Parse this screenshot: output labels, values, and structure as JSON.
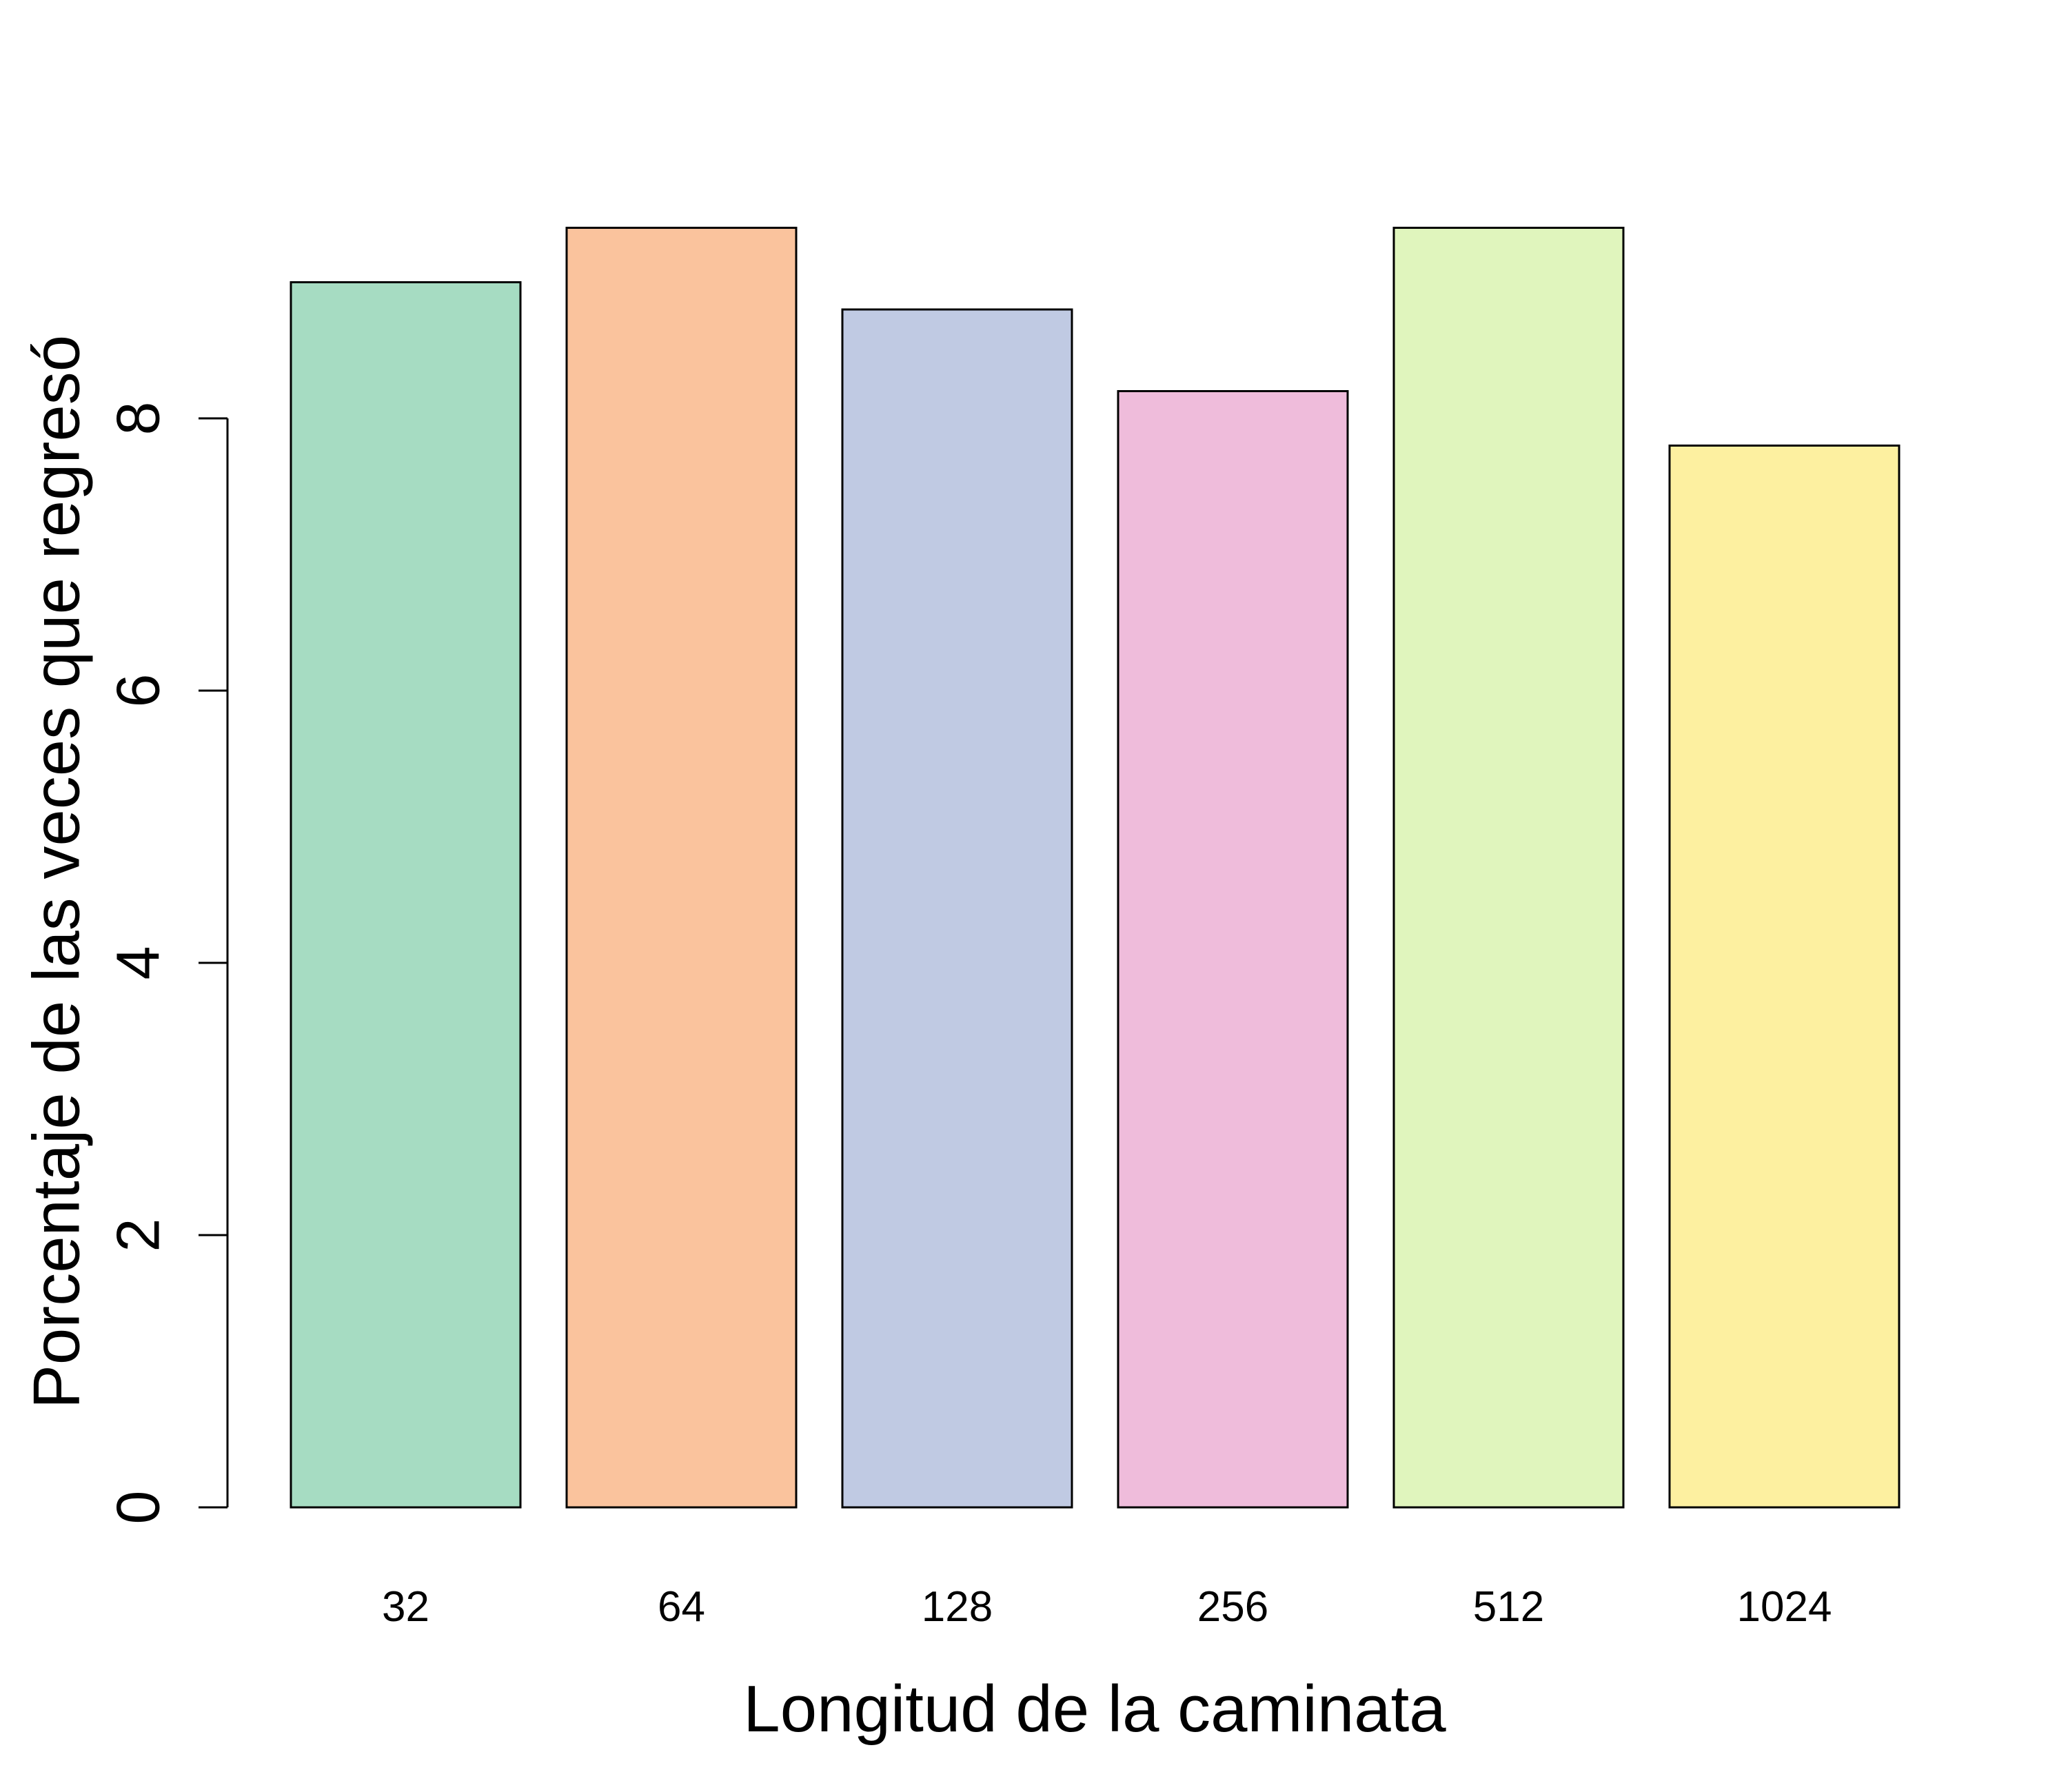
{
  "chart_data": {
    "type": "bar",
    "title": "",
    "xlabel": "Longitud de la caminata",
    "ylabel": "Porcentaje de las veces que regresó",
    "categories": [
      "32",
      "64",
      "128",
      "256",
      "512",
      "1024"
    ],
    "values": [
      9.0,
      9.4,
      8.8,
      8.2,
      9.4,
      7.8
    ],
    "colors": [
      "#a6dcc2",
      "#fac39d",
      "#c0cae3",
      "#efbcdb",
      "#e0f5bd",
      "#fdf0a0"
    ],
    "ylim": [
      0,
      10
    ],
    "yticks": [
      0,
      2,
      4,
      6,
      8
    ],
    "ytick_labels": [
      "0",
      "2",
      "4",
      "6",
      "8"
    ],
    "grid": false,
    "legend": "none"
  }
}
